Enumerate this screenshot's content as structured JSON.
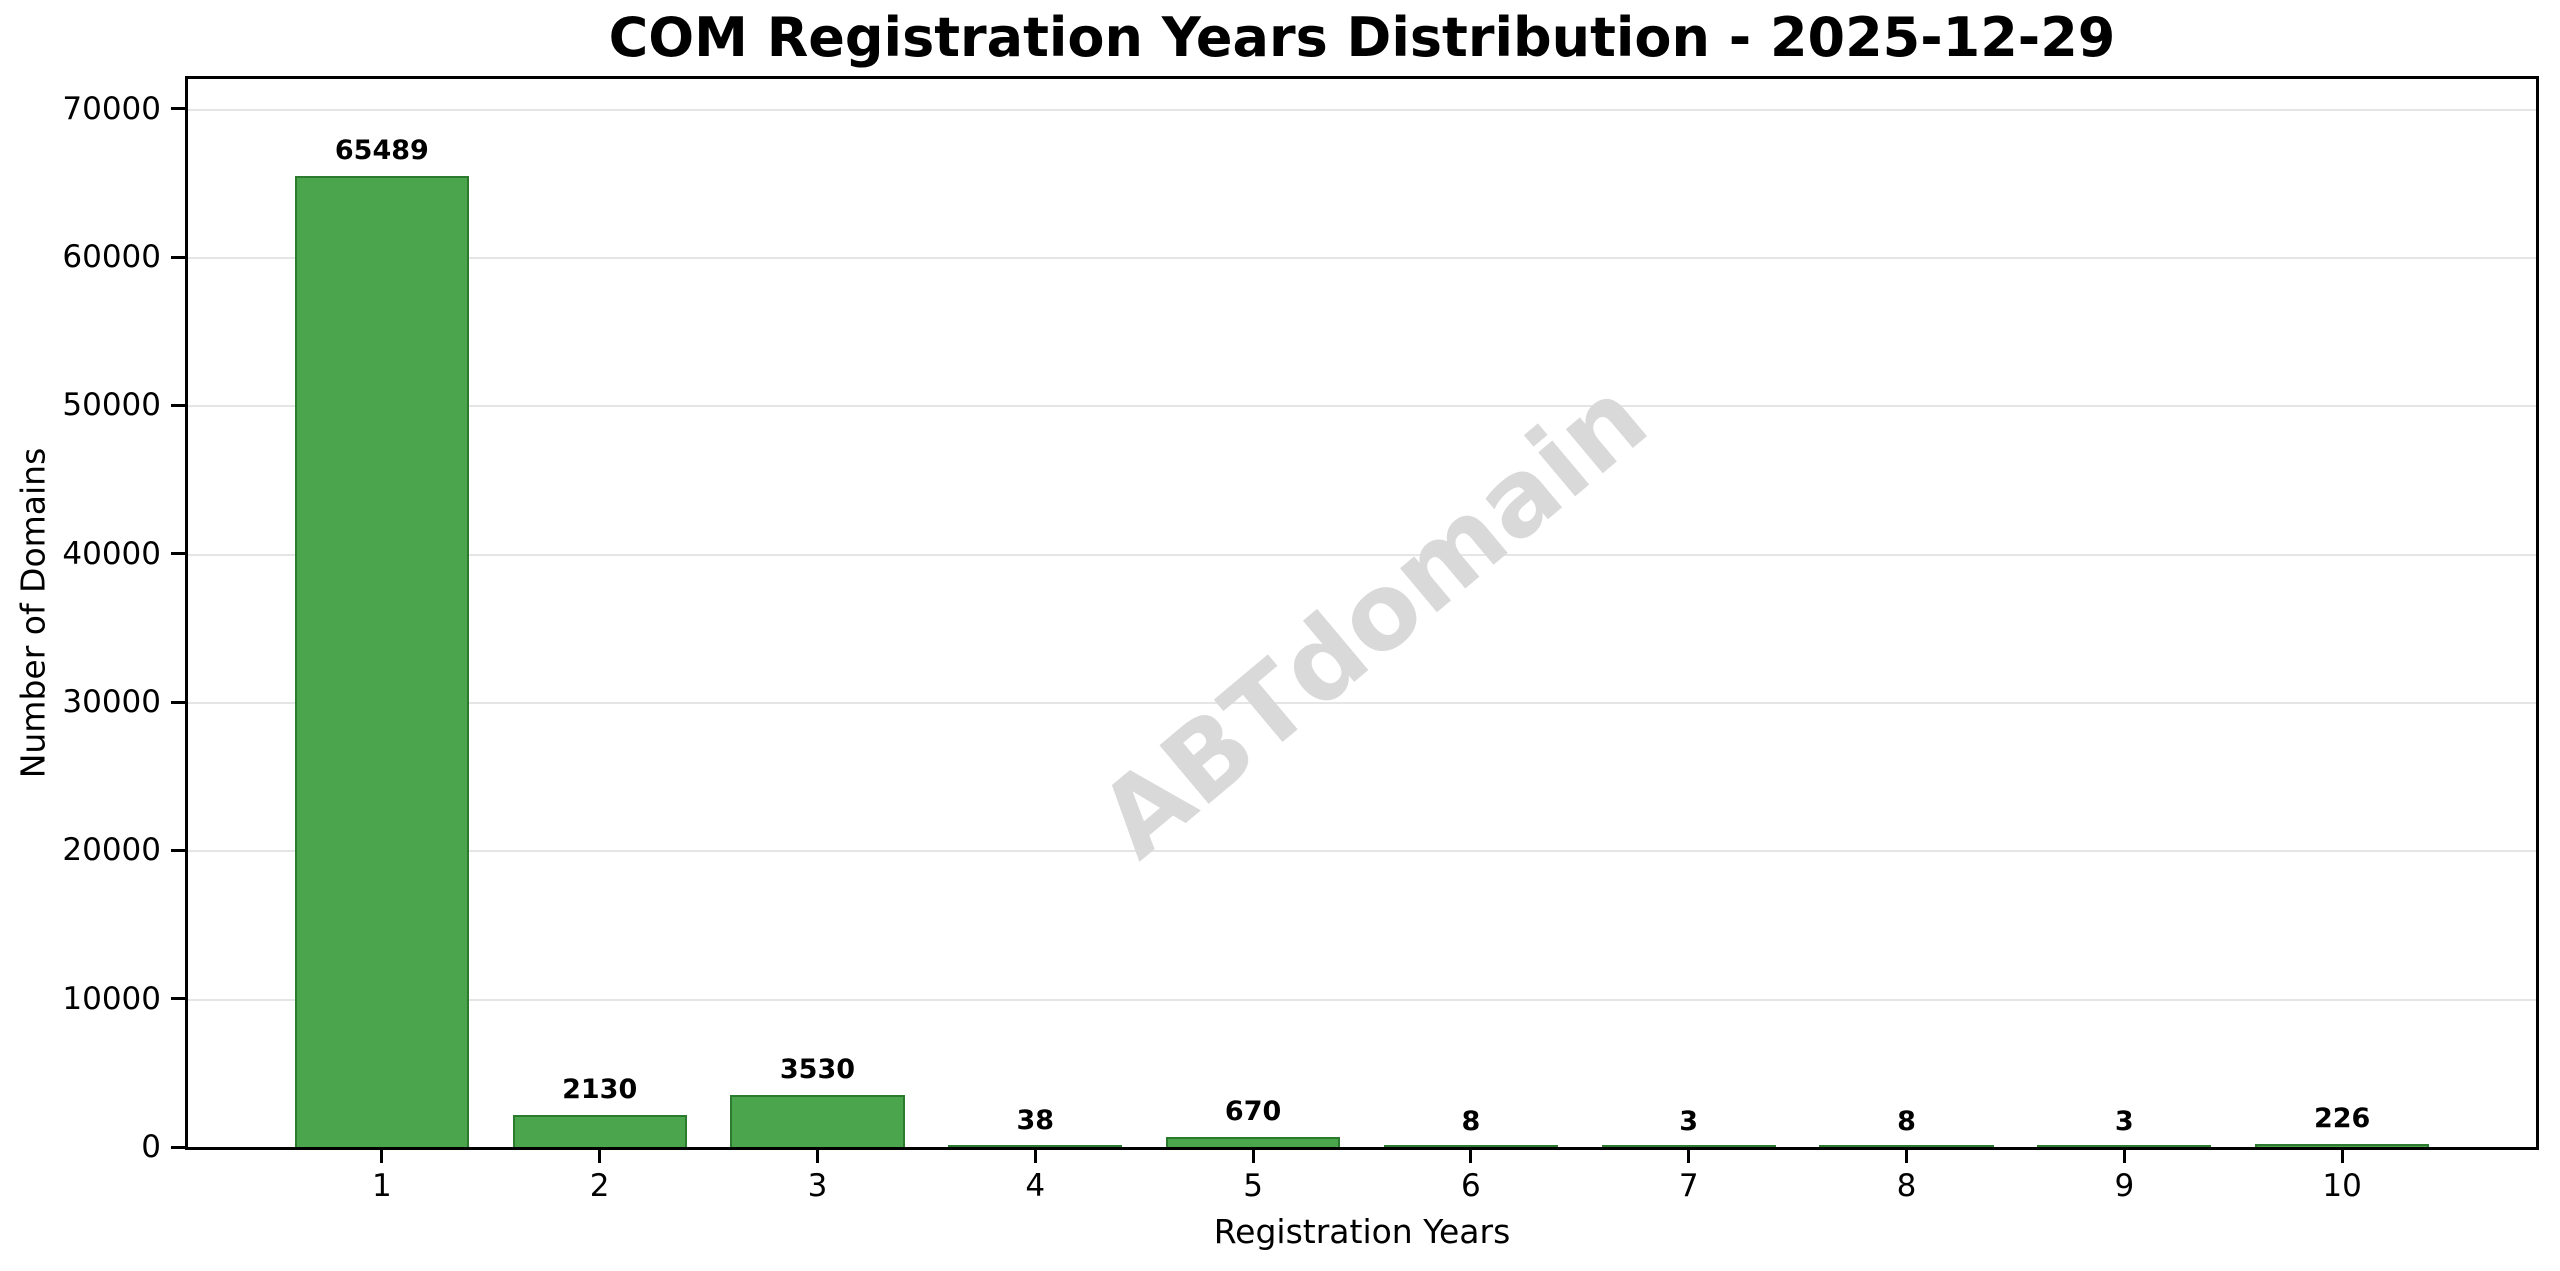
{
  "chart_data": {
    "type": "bar",
    "title": "COM Registration Years Distribution - 2025-12-29",
    "xlabel": "Registration Years",
    "ylabel": "Number of Domains",
    "categories": [
      "1",
      "2",
      "3",
      "4",
      "5",
      "6",
      "7",
      "8",
      "9",
      "10"
    ],
    "values": [
      65489,
      2130,
      3530,
      38,
      670,
      8,
      3,
      8,
      3,
      226
    ],
    "bar_labels": [
      "65489",
      "2130",
      "3530",
      "38",
      "670",
      "8",
      "3",
      "8",
      "3",
      "226"
    ],
    "yticks": [
      0,
      10000,
      20000,
      30000,
      40000,
      50000,
      60000,
      70000
    ],
    "ytick_labels": [
      "0",
      "10000",
      "20000",
      "30000",
      "40000",
      "50000",
      "60000",
      "70000"
    ],
    "ylim": [
      0,
      72000
    ],
    "grid": true,
    "legend_position": "none",
    "watermark": "ABTdomain",
    "colors": {
      "bar_fill": "#4aa54c",
      "bar_edge": "#2b7a2e",
      "gridline": "#e5e5e5",
      "watermark": "#d9d9d9",
      "axis": "#000000",
      "background": "#ffffff"
    }
  }
}
